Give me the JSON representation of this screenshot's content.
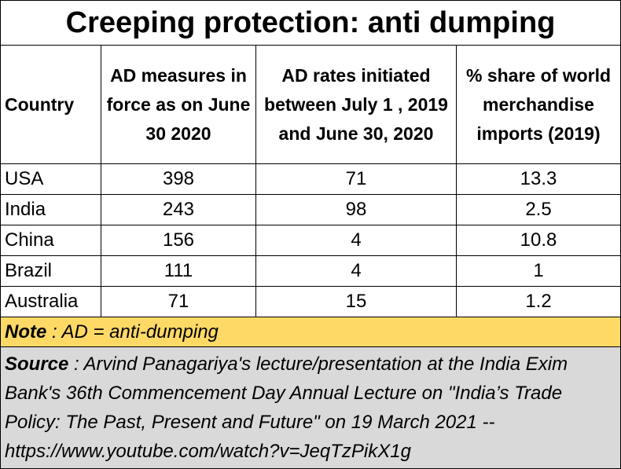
{
  "title": "Creeping protection: anti dumping",
  "columns": [
    "Country",
    "AD measures in force as on June 30 2020",
    "AD rates initiated between July 1 , 2019 and June 30, 2020",
    "% share of world merchandise imports (2019)"
  ],
  "rows": [
    {
      "country": "USA",
      "ad_measures": "398",
      "ad_rates": "71",
      "share": "13.3"
    },
    {
      "country": "India",
      "ad_measures": "243",
      "ad_rates": "98",
      "share": "2.5"
    },
    {
      "country": "China",
      "ad_measures": "156",
      "ad_rates": "4",
      "share": "10.8"
    },
    {
      "country": "Brazil",
      "ad_measures": "111",
      "ad_rates": "4",
      "share": "1"
    },
    {
      "country": "Australia",
      "ad_measures": "71",
      "ad_rates": "15",
      "share": "1.2"
    }
  ],
  "note": {
    "label": "Note",
    "text": " : AD = anti-dumping"
  },
  "source": {
    "label": "Source",
    "text": " : Arvind Panagariya's lecture/presentation at the India Exim Bank's 36th Commencement Day Annual Lecture on \"India’s Trade Policy: The Past, Present and Future\" on 19 March 2021 -- https://www.youtube.com/watch?v=JeqTzPikX1g"
  },
  "colors": {
    "note_bg": "#ffd966",
    "source_bg": "#d9d9d9"
  }
}
